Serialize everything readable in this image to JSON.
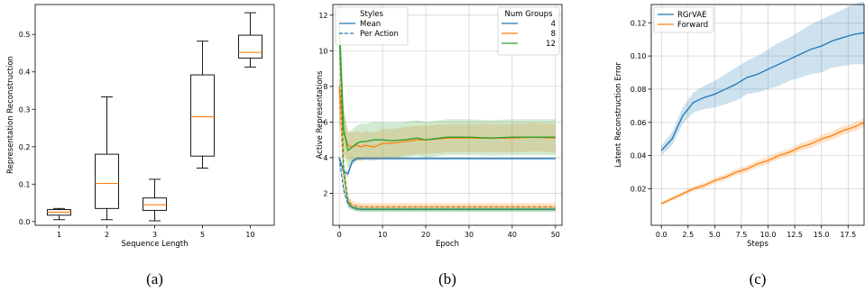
{
  "chart_data": [
    {
      "panel": "a",
      "type": "box",
      "caption": "(a)",
      "xlabel": "Sequence Length",
      "ylabel": "Representation Reconstruction",
      "categories": [
        "1",
        "2",
        "3",
        "5",
        "10"
      ],
      "ylim": [
        -0.01,
        0.58
      ],
      "yticks": [
        0.0,
        0.1,
        0.2,
        0.3,
        0.4,
        0.5
      ],
      "ytick_labels": [
        "0.0",
        "0.1",
        "0.2",
        "0.3",
        "0.4",
        "0.5"
      ],
      "boxes": [
        {
          "whisker_low": 0.005,
          "q1": 0.017,
          "median": 0.025,
          "q3": 0.032,
          "whisker_high": 0.035
        },
        {
          "whisker_low": 0.005,
          "q1": 0.035,
          "median": 0.102,
          "q3": 0.18,
          "whisker_high": 0.333
        },
        {
          "whisker_low": 0.002,
          "q1": 0.03,
          "median": 0.045,
          "q3": 0.063,
          "whisker_high": 0.113
        },
        {
          "whisker_low": 0.143,
          "q1": 0.175,
          "median": 0.28,
          "q3": 0.392,
          "whisker_high": 0.482
        },
        {
          "whisker_low": 0.413,
          "q1": 0.437,
          "median": 0.452,
          "q3": 0.498,
          "whisker_high": 0.558
        }
      ],
      "colors": {
        "box": "#000000",
        "median": "#ff7f0e"
      }
    },
    {
      "panel": "b",
      "type": "line",
      "caption": "(b)",
      "xlabel": "Epoch",
      "ylabel": "Active Representations",
      "xlim": [
        -1.5,
        51.5
      ],
      "ylim": [
        0.2,
        12.6
      ],
      "xticks": [
        0,
        10,
        20,
        30,
        40,
        50
      ],
      "xtick_labels": [
        "0",
        "10",
        "20",
        "30",
        "40",
        "50"
      ],
      "yticks": [
        2,
        4,
        6,
        8,
        10,
        12
      ],
      "ytick_labels": [
        "2",
        "4",
        "6",
        "8",
        "10",
        "12"
      ],
      "grid": true,
      "legend_styles": {
        "title": "Styles",
        "entries": [
          "Mean",
          "Per Action"
        ],
        "position": "top-left"
      },
      "legend_groups": {
        "title": "Num Groups",
        "entries": [
          "4",
          "8",
          "12"
        ],
        "position": "top-right"
      },
      "series": [
        {
          "name": "4",
          "style": "Mean",
          "color": "#1f77b4",
          "x": [
            0,
            1,
            2,
            3,
            4,
            5,
            6,
            8,
            10,
            15,
            20,
            30,
            40,
            50
          ],
          "y": [
            4.0,
            3.2,
            3.1,
            3.8,
            3.95,
            3.95,
            3.95,
            3.95,
            3.95,
            3.95,
            3.95,
            3.95,
            3.95,
            3.95
          ],
          "band": [
            0.08,
            0.15,
            0.2,
            0.12,
            0.08,
            0.08,
            0.08,
            0.08,
            0.08,
            0.08,
            0.08,
            0.08,
            0.08,
            0.08
          ]
        },
        {
          "name": "8",
          "style": "Mean",
          "color": "#ff7f0e",
          "x": [
            0,
            1,
            2,
            3,
            4,
            5,
            6,
            8,
            10,
            12,
            15,
            18,
            20,
            25,
            30,
            35,
            40,
            45,
            50
          ],
          "y": [
            8.0,
            5.4,
            4.7,
            4.6,
            4.7,
            4.6,
            4.7,
            4.6,
            4.8,
            4.8,
            4.9,
            5.0,
            5.0,
            5.1,
            5.1,
            5.1,
            5.1,
            5.15,
            5.1
          ],
          "band": [
            2.0,
            1.2,
            0.8,
            0.8,
            0.8,
            0.8,
            0.8,
            0.8,
            0.8,
            0.8,
            0.8,
            0.8,
            0.8,
            0.8,
            0.8,
            0.8,
            0.8,
            0.8,
            0.8
          ]
        },
        {
          "name": "12",
          "style": "Mean",
          "color": "#2ca02c",
          "x": [
            0,
            1,
            2,
            3,
            4,
            5,
            6,
            8,
            10,
            12,
            15,
            18,
            20,
            25,
            30,
            35,
            40,
            45,
            50
          ],
          "y": [
            11.5,
            5.6,
            4.4,
            4.6,
            4.8,
            4.9,
            4.9,
            5.0,
            5.0,
            4.95,
            5.0,
            5.1,
            5.0,
            5.15,
            5.15,
            5.1,
            5.15,
            5.15,
            5.15
          ],
          "band": [
            1.5,
            1.3,
            1.0,
            1.0,
            1.0,
            1.0,
            1.0,
            1.0,
            1.0,
            1.0,
            1.0,
            1.0,
            1.0,
            1.0,
            1.0,
            1.0,
            1.0,
            1.0,
            1.0
          ]
        },
        {
          "name": "4",
          "style": "Per Action",
          "color": "#1f77b4",
          "x": [
            0,
            1,
            2,
            3,
            4,
            5,
            10,
            20,
            30,
            40,
            50
          ],
          "y": [
            4.0,
            2.2,
            1.4,
            1.2,
            1.15,
            1.1,
            1.1,
            1.1,
            1.1,
            1.1,
            1.1
          ],
          "band": [
            0.1,
            0.2,
            0.15,
            0.1,
            0.1,
            0.1,
            0.1,
            0.1,
            0.1,
            0.1,
            0.1
          ]
        },
        {
          "name": "8",
          "style": "Per Action",
          "color": "#ff7f0e",
          "x": [
            0,
            1,
            2,
            3,
            4,
            5,
            10,
            20,
            30,
            40,
            50
          ],
          "y": [
            7.8,
            3.0,
            1.6,
            1.35,
            1.3,
            1.25,
            1.25,
            1.25,
            1.25,
            1.25,
            1.25
          ],
          "band": [
            1.0,
            0.5,
            0.3,
            0.2,
            0.2,
            0.2,
            0.2,
            0.2,
            0.2,
            0.2,
            0.2
          ]
        },
        {
          "name": "12",
          "style": "Per Action",
          "color": "#2ca02c",
          "x": [
            0,
            1,
            2,
            3,
            4,
            5,
            10,
            20,
            30,
            40,
            50
          ],
          "y": [
            11.2,
            3.4,
            1.5,
            1.2,
            1.1,
            1.1,
            1.1,
            1.1,
            1.1,
            1.1,
            1.1
          ],
          "band": [
            1.0,
            0.6,
            0.3,
            0.15,
            0.15,
            0.15,
            0.15,
            0.15,
            0.15,
            0.15,
            0.15
          ]
        }
      ]
    },
    {
      "panel": "c",
      "type": "line",
      "caption": "(c)",
      "xlabel": "Steps",
      "ylabel": "Latent Reconstruction Error",
      "xlim": [
        -0.95,
        19.0
      ],
      "ylim": [
        -0.002,
        0.131
      ],
      "xticks": [
        0.0,
        2.5,
        5.0,
        7.5,
        10.0,
        12.5,
        15.0,
        17.5
      ],
      "xtick_labels": [
        "0.0",
        "2.5",
        "5.0",
        "7.5",
        "10.0",
        "12.5",
        "15.0",
        "17.5"
      ],
      "yticks": [
        0.02,
        0.04,
        0.06,
        0.08,
        0.1,
        0.12
      ],
      "ytick_labels": [
        "0.02",
        "0.04",
        "0.06",
        "0.08",
        "0.10",
        "0.12"
      ],
      "grid": true,
      "legend": {
        "entries": [
          "RGrVAE",
          "Forward"
        ],
        "position": "top-left"
      },
      "series": [
        {
          "name": "RGrVAE",
          "color": "#1f77b4",
          "x": [
            0,
            1,
            2,
            3,
            4,
            5,
            6,
            7,
            8,
            9,
            10,
            11,
            12,
            13,
            14,
            15,
            16,
            17,
            18,
            19
          ],
          "y": [
            0.043,
            0.05,
            0.064,
            0.072,
            0.075,
            0.077,
            0.08,
            0.083,
            0.087,
            0.089,
            0.092,
            0.095,
            0.098,
            0.101,
            0.104,
            0.106,
            0.109,
            0.111,
            0.113,
            0.114
          ],
          "band": [
            0.003,
            0.004,
            0.005,
            0.006,
            0.007,
            0.008,
            0.009,
            0.01,
            0.01,
            0.011,
            0.012,
            0.013,
            0.013,
            0.014,
            0.015,
            0.016,
            0.016,
            0.017,
            0.018,
            0.019
          ]
        },
        {
          "name": "Forward",
          "color": "#ff7f0e",
          "x": [
            0,
            1,
            2,
            3,
            4,
            5,
            6,
            7,
            8,
            9,
            10,
            11,
            12,
            13,
            14,
            15,
            16,
            17,
            18,
            19
          ],
          "y": [
            0.011,
            0.014,
            0.017,
            0.02,
            0.022,
            0.025,
            0.027,
            0.03,
            0.032,
            0.035,
            0.037,
            0.04,
            0.042,
            0.045,
            0.047,
            0.05,
            0.052,
            0.055,
            0.057,
            0.06
          ],
          "band": [
            0.001,
            0.0012,
            0.0013,
            0.0015,
            0.0016,
            0.0017,
            0.0018,
            0.0019,
            0.002,
            0.002,
            0.0021,
            0.0022,
            0.0022,
            0.0023,
            0.0024,
            0.0024,
            0.0025,
            0.0025,
            0.0026,
            0.0026
          ]
        }
      ]
    }
  ]
}
